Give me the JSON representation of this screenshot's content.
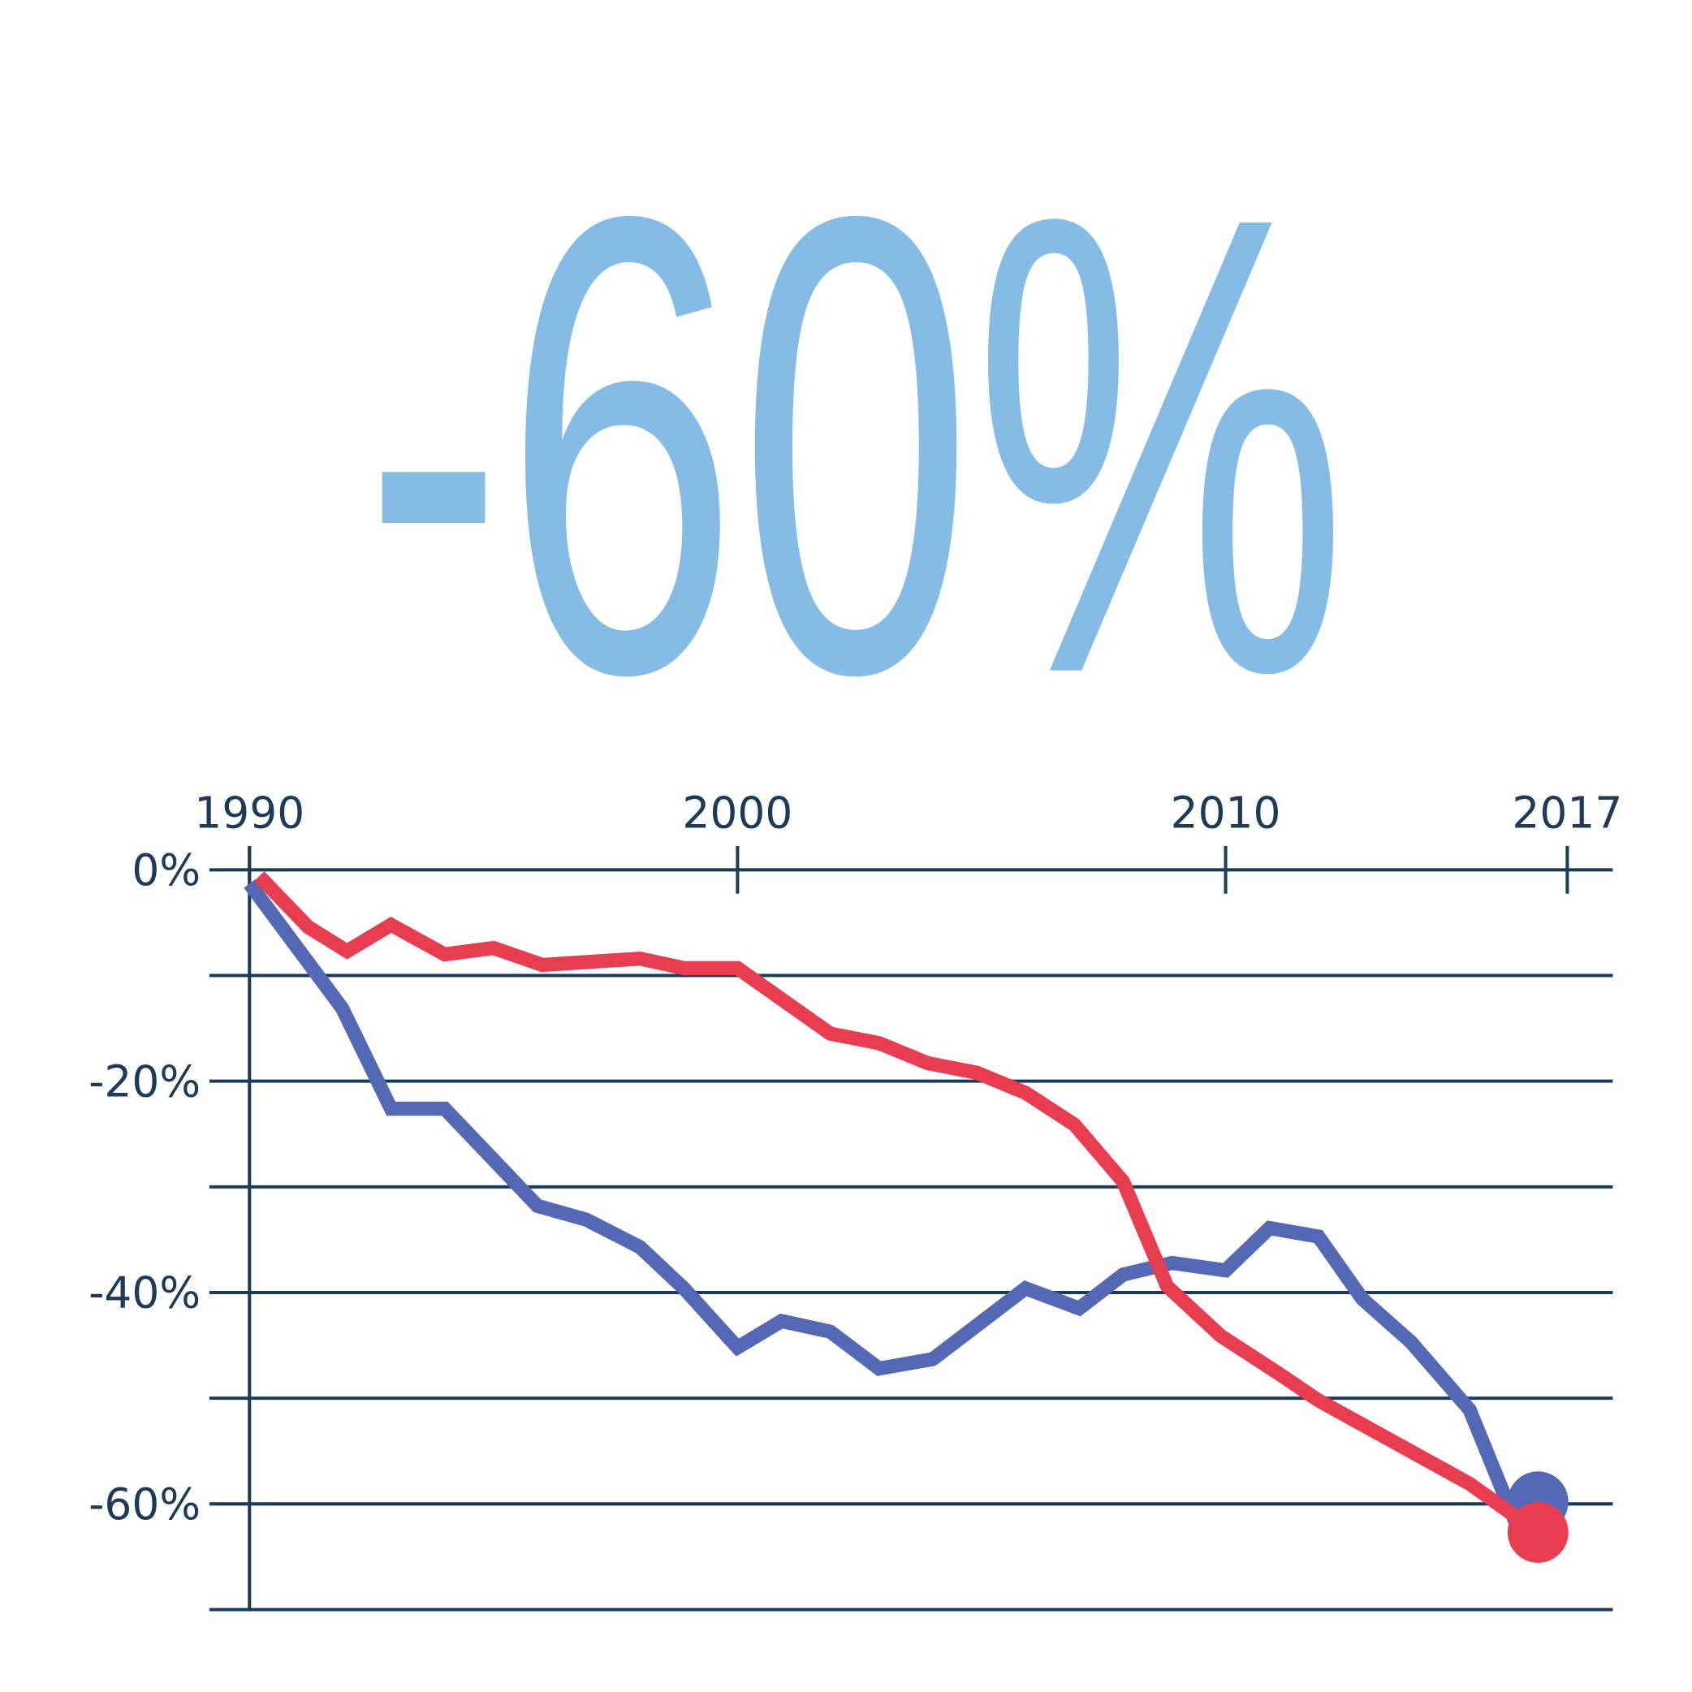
{
  "chart_data": {
    "type": "line",
    "headline": "-60%",
    "xlim": [
      1990,
      2017.5
    ],
    "xticks": [
      1990,
      2000,
      2010,
      2017
    ],
    "ylim": [
      -70,
      2.5
    ],
    "yticks": [
      {
        "value": 0,
        "label": "0%"
      },
      {
        "value": -20,
        "label": "-20%"
      },
      {
        "value": -40,
        "label": "-40%"
      },
      {
        "value": -60,
        "label": "-60%"
      }
    ],
    "minor_grid": [
      -10,
      -30,
      -50,
      -70
    ],
    "grid": true,
    "end_markers": true,
    "series": [
      {
        "color": "#5468b5",
        "x": [
          1990.0,
          1991.9,
          1992.9,
          1994.0,
          1995.9,
          1996.9,
          1998.0,
          1998.9,
          2000.0,
          2000.9,
          2001.9,
          2002.9,
          2004.0,
          2005.9,
          2007.0,
          2007.9,
          2008.9,
          2010.0,
          2010.9,
          2011.9,
          2012.8,
          2013.8,
          2015.0,
          2015.9,
          2016.4
        ],
        "values": [
          -1.3,
          -13.1,
          -22.6,
          -22.6,
          -31.8,
          -33.1,
          -35.7,
          -39.6,
          -45.2,
          -42.7,
          -43.7,
          -47.2,
          -46.3,
          -39.6,
          -41.5,
          -38.3,
          -37.2,
          -37.9,
          -33.9,
          -34.7,
          -40.6,
          -44.7,
          -51.1,
          -61.3,
          -59.8
        ]
      },
      {
        "color": "#e83c50",
        "x": [
          1990.2,
          1991.2,
          1992.0,
          1992.9,
          1994.0,
          1995.0,
          1996.0,
          1998.0,
          1998.9,
          2000.0,
          2001.9,
          2002.9,
          2003.9,
          2004.9,
          2005.9,
          2006.9,
          2007.9,
          2008.8,
          2009.9,
          2011.1,
          2011.9,
          2015.0,
          2016.4
        ],
        "values": [
          -0.6,
          -5.4,
          -7.7,
          -5.2,
          -8.0,
          -7.4,
          -9.0,
          -8.4,
          -9.3,
          -9.3,
          -15.5,
          -16.4,
          -18.3,
          -19.2,
          -21.1,
          -24.1,
          -29.5,
          -39.4,
          -44.1,
          -47.7,
          -50.2,
          -58.1,
          -62.7
        ]
      }
    ]
  }
}
